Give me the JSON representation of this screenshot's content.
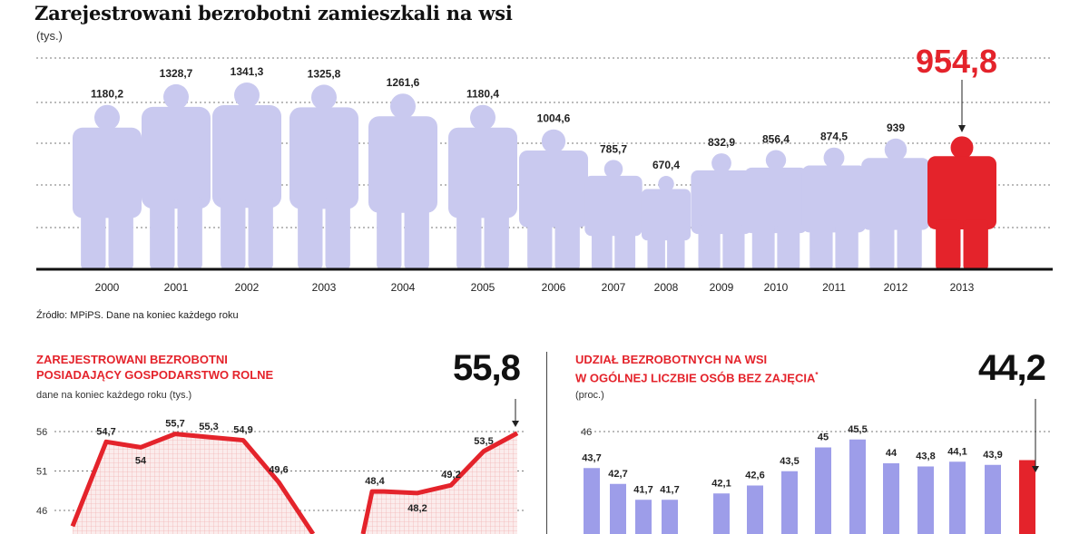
{
  "header": {
    "title": "Zarejestrowani bezrobotni zamieszkali na wsi",
    "unit": "(tys.)"
  },
  "source": "Źródło: MPiPS. Dane na koniec każdego roku",
  "colors": {
    "figure": "#c9c9ef",
    "highlight": "#e4232b",
    "line": "#e4232b",
    "bar": "#9d9de9",
    "axis": "#111111"
  },
  "icon": "person-figure-icon",
  "chart_data": [
    {
      "type": "bar",
      "title": "Zarejestrowani bezrobotni zamieszkali na wsi",
      "ylabel": "(tys.)",
      "categories": [
        "2000",
        "2001",
        "2002",
        "2003",
        "2004",
        "2005",
        "2006",
        "2007",
        "2008",
        "2009",
        "2010",
        "2011",
        "2012",
        "2013"
      ],
      "values": [
        1180.2,
        1328.7,
        1341.3,
        1325.8,
        1261.6,
        1180.4,
        1004.6,
        785.7,
        670.4,
        832.9,
        856.4,
        874.5,
        939,
        954.8
      ],
      "labels": [
        "1180,2",
        "1328,7",
        "1341,3",
        "1325,8",
        "1261,6",
        "1180,4",
        "1004,6",
        "785,7",
        "670,4",
        "832,9",
        "856,4",
        "874,5",
        "939",
        "954,8"
      ],
      "highlight": {
        "category": "2013",
        "label": "954,8"
      },
      "grid": true
    },
    {
      "type": "area",
      "title_lines": [
        "ZAREJESTROWANI BEZROBOTNI",
        "POSIADAJĄCY GOSPODARSTWO ROLNE"
      ],
      "unit": "dane na koniec każdego roku (tys.)",
      "values": [
        null,
        54.7,
        54,
        55.7,
        55.3,
        54.9,
        49.6,
        null,
        48.4,
        48.2,
        49.2,
        53.5,
        55.8
      ],
      "labels": [
        "",
        "54,7",
        "54",
        "55,7",
        "55,3",
        "54,9",
        "49,6",
        "",
        "48,4",
        "48,2",
        "49,2",
        "53,5",
        ""
      ],
      "highlight": {
        "label": "55,8"
      },
      "yticks": [
        "56",
        "51",
        "46"
      ],
      "ytick_values": [
        56,
        51,
        46
      ],
      "grid": true
    },
    {
      "type": "bar",
      "title_lines": [
        "UDZIAŁ BEZROBOTNYCH NA WSI",
        "W OGÓLNEJ LICZBIE OSÓB BEZ ZAJĘCIA"
      ],
      "title_mark": "*",
      "unit": "(proc.)",
      "values": [
        43.7,
        42.7,
        41.7,
        41.7,
        42.1,
        42.6,
        43.5,
        45,
        45.5,
        44,
        43.8,
        44.1,
        43.9,
        44.2
      ],
      "labels": [
        "43,7",
        "42,7",
        "41,7",
        "41,7",
        "42,1",
        "42,6",
        "43,5",
        "45",
        "45,5",
        "44",
        "43,8",
        "44,1",
        "43,9",
        ""
      ],
      "highlight": {
        "label": "44,2"
      },
      "yticks": [
        "46"
      ],
      "ytick_values": [
        46
      ],
      "grid": true
    }
  ]
}
